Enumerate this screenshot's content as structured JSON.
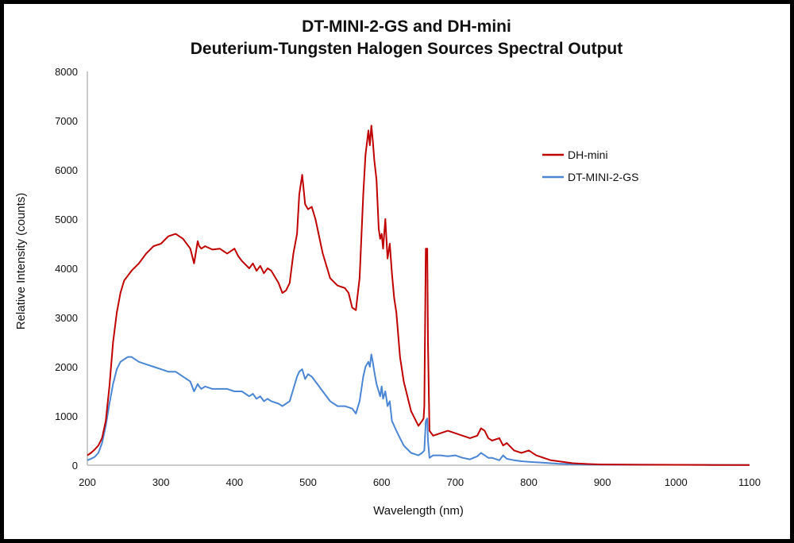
{
  "chart_data": {
    "type": "line",
    "title": "DT-MINI-2-GS and DH-mini",
    "subtitle": "Deuterium-Tungsten Halogen Sources Spectral Output",
    "xlabel": "Wavelength (nm)",
    "ylabel": "Relative Intensity (counts)",
    "xlim": [
      200,
      1100
    ],
    "ylim": [
      0,
      8000
    ],
    "x_ticks": [
      "200",
      "300",
      "400",
      "500",
      "600",
      "700",
      "800",
      "900",
      "1000",
      "1100"
    ],
    "y_ticks": [
      "0",
      "1000",
      "2000",
      "3000",
      "4000",
      "5000",
      "6000",
      "7000",
      "8000"
    ],
    "grid": false,
    "legend_position": "right",
    "series": [
      {
        "name": "DH-mini",
        "color": "#c00000",
        "x": [
          200,
          205,
          210,
          215,
          220,
          225,
          230,
          235,
          240,
          245,
          250,
          255,
          260,
          270,
          280,
          290,
          300,
          310,
          320,
          330,
          340,
          345,
          350,
          352,
          355,
          360,
          370,
          380,
          390,
          400,
          405,
          410,
          420,
          425,
          430,
          435,
          440,
          445,
          450,
          460,
          465,
          470,
          475,
          480,
          485,
          488,
          492,
          496,
          500,
          505,
          510,
          520,
          530,
          540,
          550,
          555,
          560,
          565,
          570,
          575,
          578,
          582,
          584,
          586,
          588,
          590,
          593,
          596,
          598,
          600,
          602,
          605,
          608,
          611,
          614,
          617,
          620,
          625,
          630,
          640,
          650,
          655,
          657,
          658,
          660,
          662,
          663,
          665,
          670,
          680,
          690,
          700,
          710,
          720,
          730,
          735,
          740,
          745,
          750,
          760,
          765,
          770,
          780,
          790,
          800,
          810,
          820,
          830,
          840,
          850,
          860,
          880,
          900,
          950,
          1000,
          1050,
          1100
        ],
        "values": [
          200,
          250,
          320,
          400,
          550,
          900,
          1600,
          2500,
          3100,
          3500,
          3750,
          3850,
          3950,
          4100,
          4300,
          4450,
          4500,
          4650,
          4700,
          4600,
          4400,
          4100,
          4550,
          4450,
          4400,
          4450,
          4380,
          4400,
          4300,
          4400,
          4250,
          4150,
          4000,
          4100,
          3950,
          4050,
          3900,
          4000,
          3950,
          3700,
          3500,
          3550,
          3700,
          4300,
          4700,
          5500,
          5900,
          5300,
          5200,
          5250,
          5000,
          4300,
          3800,
          3650,
          3600,
          3500,
          3200,
          3150,
          3800,
          5500,
          6300,
          6800,
          6500,
          6900,
          6600,
          6200,
          5800,
          4800,
          4600,
          4700,
          4400,
          5000,
          4200,
          4500,
          3900,
          3400,
          3100,
          2200,
          1700,
          1100,
          800,
          900,
          950,
          1200,
          4400,
          4400,
          2500,
          700,
          600,
          650,
          700,
          650,
          600,
          550,
          600,
          750,
          700,
          550,
          500,
          550,
          400,
          450,
          300,
          250,
          300,
          200,
          150,
          100,
          80,
          60,
          40,
          25,
          15,
          10,
          8,
          5,
          3
        ]
      },
      {
        "name": "DT-MINI-2-GS",
        "color": "#4a86d4",
        "x": [
          200,
          205,
          210,
          215,
          220,
          225,
          230,
          235,
          240,
          245,
          250,
          255,
          260,
          270,
          280,
          290,
          300,
          310,
          320,
          330,
          340,
          345,
          350,
          352,
          355,
          360,
          370,
          380,
          390,
          400,
          410,
          420,
          425,
          430,
          435,
          440,
          445,
          450,
          460,
          465,
          470,
          475,
          480,
          485,
          488,
          492,
          496,
          500,
          505,
          510,
          520,
          530,
          540,
          550,
          560,
          565,
          570,
          575,
          578,
          582,
          584,
          586,
          588,
          590,
          593,
          596,
          598,
          600,
          602,
          605,
          608,
          611,
          614,
          617,
          620,
          625,
          630,
          640,
          650,
          655,
          658,
          660,
          662,
          663,
          665,
          670,
          680,
          690,
          700,
          710,
          720,
          730,
          735,
          740,
          745,
          750,
          760,
          765,
          770,
          780,
          790,
          800,
          820,
          840,
          860,
          880,
          900,
          950,
          1000,
          1050,
          1100
        ],
        "values": [
          100,
          130,
          170,
          250,
          450,
          800,
          1250,
          1650,
          1950,
          2100,
          2150,
          2200,
          2200,
          2100,
          2050,
          2000,
          1950,
          1900,
          1900,
          1800,
          1700,
          1500,
          1650,
          1600,
          1550,
          1600,
          1550,
          1550,
          1550,
          1500,
          1500,
          1400,
          1450,
          1350,
          1400,
          1300,
          1350,
          1300,
          1250,
          1200,
          1250,
          1300,
          1550,
          1800,
          1900,
          1950,
          1750,
          1850,
          1800,
          1700,
          1500,
          1300,
          1200,
          1200,
          1150,
          1050,
          1300,
          1800,
          2000,
          2100,
          2000,
          2250,
          2100,
          1900,
          1650,
          1500,
          1400,
          1600,
          1350,
          1500,
          1200,
          1300,
          900,
          800,
          700,
          550,
          400,
          250,
          200,
          250,
          300,
          900,
          950,
          500,
          150,
          200,
          200,
          180,
          200,
          150,
          120,
          180,
          250,
          200,
          150,
          150,
          100,
          200,
          130,
          100,
          80,
          70,
          50,
          30,
          20,
          15,
          12,
          10,
          8,
          6,
          5
        ]
      }
    ]
  }
}
